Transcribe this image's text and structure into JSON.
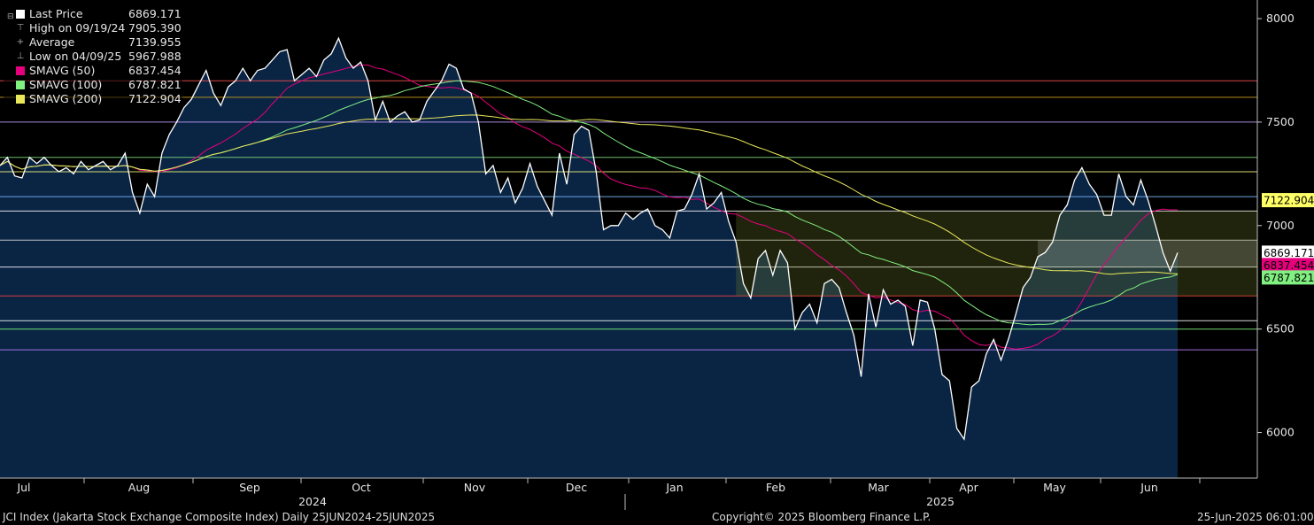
{
  "chart_data": {
    "type": "line",
    "title": "",
    "ylim": [
      5780,
      8090
    ],
    "y_ticks": [
      6000,
      6500,
      7000,
      7500,
      8000
    ],
    "grid": false,
    "legend_position": "top-left",
    "months": [
      "Jul",
      "Aug",
      "Sep",
      "2024",
      "Oct",
      "Nov",
      "Dec",
      "Jan",
      "Feb",
      "Mar",
      "2025",
      "Apr",
      "May",
      "Jun"
    ],
    "series": [
      {
        "name": "Last Price",
        "color": "#ffffff",
        "values": [
          7290,
          7330,
          7240,
          7230,
          7330,
          7300,
          7330,
          7290,
          7260,
          7280,
          7250,
          7310,
          7270,
          7290,
          7310,
          7270,
          7290,
          7350,
          7160,
          7060,
          7200,
          7140,
          7350,
          7440,
          7500,
          7570,
          7610,
          7680,
          7750,
          7640,
          7580,
          7670,
          7700,
          7760,
          7700,
          7750,
          7760,
          7800,
          7840,
          7850,
          7700,
          7730,
          7760,
          7720,
          7800,
          7830,
          7905,
          7810,
          7760,
          7790,
          7700,
          7510,
          7600,
          7500,
          7530,
          7550,
          7500,
          7510,
          7600,
          7650,
          7700,
          7780,
          7760,
          7660,
          7640,
          7500,
          7250,
          7290,
          7160,
          7230,
          7110,
          7180,
          7300,
          7190,
          7120,
          7050,
          7350,
          7200,
          7440,
          7480,
          7460,
          7260,
          6980,
          7000,
          7000,
          7060,
          7030,
          7060,
          7080,
          7000,
          6980,
          6940,
          7070,
          7080,
          7150,
          7250,
          7080,
          7110,
          7160,
          7020,
          6920,
          6720,
          6650,
          6840,
          6880,
          6760,
          6880,
          6820,
          6500,
          6580,
          6620,
          6530,
          6720,
          6740,
          6700,
          6580,
          6470,
          6270,
          6670,
          6510,
          6690,
          6620,
          6640,
          6610,
          6420,
          6640,
          6630,
          6500,
          6280,
          6250,
          6020,
          5968,
          6220,
          6250,
          6380,
          6450,
          6350,
          6450,
          6570,
          6700,
          6750,
          6850,
          6870,
          6920,
          7050,
          7100,
          7220,
          7280,
          7200,
          7150,
          7050,
          7050,
          7250,
          7140,
          7100,
          7220,
          7120,
          7000,
          6870,
          6780,
          6869
        ]
      },
      {
        "name": "SMAVG (50)",
        "color": "#e6007e"
      },
      {
        "name": "SMAVG (100)",
        "color": "#80f080"
      },
      {
        "name": "SMAVG (200)",
        "color": "#e8e85a"
      }
    ],
    "horizontal_levels": [
      {
        "value": 7700,
        "color": "#ff5050"
      },
      {
        "value": 7620,
        "color": "#d4a020"
      },
      {
        "value": 7500,
        "color": "#c8a0ff"
      },
      {
        "value": 7330,
        "color": "#80e080"
      },
      {
        "value": 7260,
        "color": "#ffff80"
      },
      {
        "value": 7140,
        "color": "#80c0ff"
      },
      {
        "value": 7070,
        "color": "#ffffff"
      },
      {
        "value": 6930,
        "color": "#dddddd"
      },
      {
        "value": 6800,
        "color": "#ffffff"
      },
      {
        "value": 6660,
        "color": "#ff4040"
      },
      {
        "value": 6540,
        "color": "#ffffff"
      },
      {
        "value": 6500,
        "color": "#80ff80"
      },
      {
        "value": 6400,
        "color": "#c080ff"
      }
    ],
    "end_labels": [
      {
        "text": "7122.904",
        "value": 7122.904,
        "bg": "#ffff66",
        "fg": "#000000"
      },
      {
        "text": "6869.171",
        "value": 6869.171,
        "bg": "#ffffff",
        "fg": "#000000"
      },
      {
        "text": "6837.454",
        "value": 6837.454,
        "bg": "#e6007e",
        "fg": "#000000"
      },
      {
        "text": "6787.821",
        "value": 6787.821,
        "bg": "#80f080",
        "fg": "#000000"
      }
    ]
  },
  "legend": [
    {
      "label": "Last Price",
      "value": "6869.171",
      "color": "#ffffff",
      "icon": "filled-square"
    },
    {
      "label": "High on 09/19/24",
      "value": "7905.390",
      "color": "#aaaaaa",
      "icon": "high-tick-icon"
    },
    {
      "label": "Average",
      "value": "7139.955",
      "color": "#aaaaaa",
      "icon": "average-tick-icon"
    },
    {
      "label": "Low on 04/09/25",
      "value": "5967.988",
      "color": "#aaaaaa",
      "icon": "low-tick-icon"
    },
    {
      "label": "SMAVG (50)",
      "value": "6837.454",
      "color": "#e6007e",
      "icon": "filled-square"
    },
    {
      "label": "SMAVG (100)",
      "value": "6787.821",
      "color": "#80f080",
      "icon": "filled-square"
    },
    {
      "label": "SMAVG (200)",
      "value": "7122.904",
      "color": "#e8e85a",
      "icon": "filled-square"
    }
  ],
  "footer": {
    "left": "JCI Index (Jakarta Stock Exchange Composite Index)  Daily 25JUN2024-25JUN2025",
    "center": "Copyright© 2025 Bloomberg Finance L.P.",
    "right": "25-Jun-2025 06:01:00"
  }
}
